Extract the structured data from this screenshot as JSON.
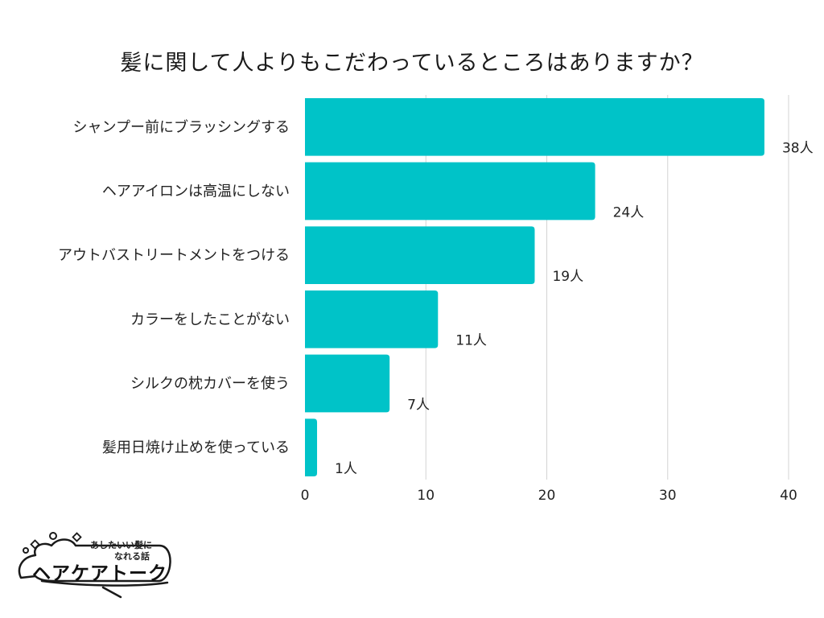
{
  "chart_data": {
    "type": "bar",
    "orientation": "horizontal",
    "title": "髪に関して人よりもこだわっているところはありますか？",
    "categories": [
      "シャンプー前にブラッシングする",
      "ヘアアイロンは高温にしない",
      "アウトバストリートメントをつける",
      "カラーをしたことがない",
      "シルクの枕カバーを使う",
      "髪用日焼け止めを使っている"
    ],
    "values": [
      38,
      24,
      19,
      11,
      7,
      1
    ],
    "value_labels": [
      "38人",
      "24人",
      "19人",
      "11人",
      "7人",
      "1人"
    ],
    "xlim": [
      0,
      40
    ],
    "xticks": [
      "0",
      "10",
      "20",
      "30",
      "40"
    ],
    "xlabel": "",
    "ylabel": "",
    "grid": "vertical",
    "bar_color": "#00C3C8",
    "grid_color": "#D3D3D3"
  },
  "logo": {
    "tagline_1": "あしたいい髪に",
    "tagline_2": "なれる話",
    "name": "ヘアケアトーク"
  }
}
